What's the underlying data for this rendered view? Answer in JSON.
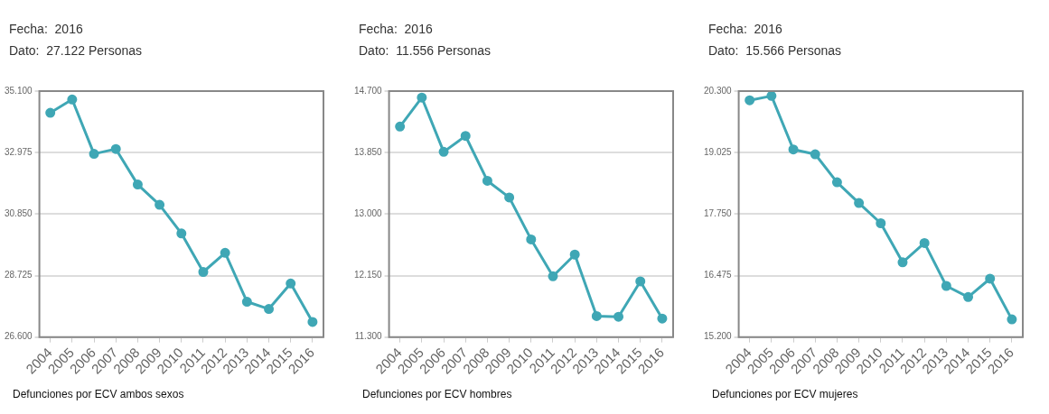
{
  "chart_data": [
    {
      "type": "line",
      "title": "Defunciones por ECV ambos sexos",
      "annotations": [
        "Fecha:  2016",
        "Dato:  27.122 Personas"
      ],
      "categories": [
        "2004",
        "2005",
        "2006",
        "2007",
        "2008",
        "2009",
        "2010",
        "2011",
        "2012",
        "2013",
        "2014",
        "2015",
        "2016"
      ],
      "series": [
        {
          "color": "#3fa7b5",
          "values": [
            34350,
            34810,
            32930,
            33100,
            31870,
            31170,
            30180,
            28850,
            29510,
            27820,
            27570,
            28450,
            27122
          ]
        }
      ],
      "ylim": [
        26600,
        35100
      ],
      "yticks": [
        {
          "value": 26600,
          "label": "26.600"
        },
        {
          "value": 28725,
          "label": "28.725"
        },
        {
          "value": 30850,
          "label": "30.850"
        },
        {
          "value": 32975,
          "label": "32.975"
        },
        {
          "value": 35100,
          "label": "35.100"
        }
      ],
      "grid": "y",
      "legend": false,
      "marker": "circle",
      "line_style": "solid"
    },
    {
      "type": "line",
      "title": "Defunciones por ECV hombres",
      "annotations": [
        "Fecha:  2016",
        "Dato:  11.556 Personas"
      ],
      "categories": [
        "2004",
        "2005",
        "2006",
        "2007",
        "2008",
        "2009",
        "2010",
        "2011",
        "2012",
        "2013",
        "2014",
        "2015",
        "2016"
      ],
      "series": [
        {
          "color": "#3fa7b5",
          "values": [
            14210,
            14610,
            13860,
            14080,
            13460,
            13230,
            12650,
            12140,
            12440,
            11590,
            11580,
            12070,
            11556
          ]
        }
      ],
      "ylim": [
        11300,
        14700
      ],
      "yticks": [
        {
          "value": 11300,
          "label": "11.300"
        },
        {
          "value": 12150,
          "label": "12.150"
        },
        {
          "value": 13000,
          "label": "13.000"
        },
        {
          "value": 13850,
          "label": "13.850"
        },
        {
          "value": 14700,
          "label": "14.700"
        }
      ],
      "grid": "y",
      "legend": false,
      "marker": "circle",
      "line_style": "solid"
    },
    {
      "type": "line",
      "title": "Defunciones por ECV mujeres",
      "annotations": [
        "Fecha:  2016",
        "Dato:  15.566 Personas"
      ],
      "categories": [
        "2004",
        "2005",
        "2006",
        "2007",
        "2008",
        "2009",
        "2010",
        "2011",
        "2012",
        "2013",
        "2014",
        "2015",
        "2016"
      ],
      "series": [
        {
          "color": "#3fa7b5",
          "values": [
            20110,
            20200,
            19090,
            18990,
            18410,
            17980,
            17560,
            16750,
            17150,
            16260,
            16030,
            16410,
            15566
          ]
        }
      ],
      "ylim": [
        15200,
        20300
      ],
      "yticks": [
        {
          "value": 15200,
          "label": "15.200"
        },
        {
          "value": 16475,
          "label": "16.475"
        },
        {
          "value": 17750,
          "label": "17.750"
        },
        {
          "value": 19025,
          "label": "19.025"
        },
        {
          "value": 20300,
          "label": "20.300"
        }
      ],
      "grid": "y",
      "legend": false,
      "marker": "circle",
      "line_style": "solid"
    }
  ]
}
